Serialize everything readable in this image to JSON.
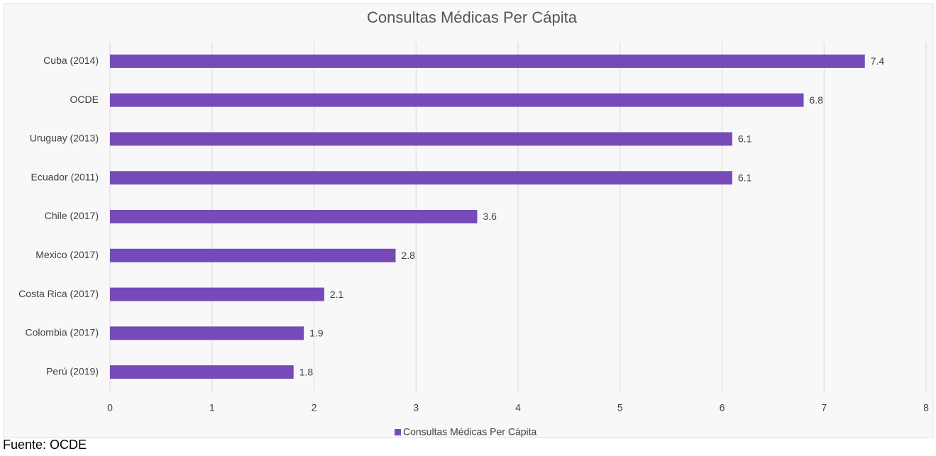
{
  "chart_data": {
    "type": "bar",
    "orientation": "horizontal",
    "title": "Consultas Médicas Per Cápita",
    "categories": [
      "Cuba (2014)",
      "OCDE",
      "Uruguay (2013)",
      "Ecuador (2011)",
      "Chile (2017)",
      "Mexico (2017)",
      "Costa Rica (2017)",
      "Colombia (2017)",
      "Perú (2019)"
    ],
    "series": [
      {
        "name": "Consultas Médicas Per Cápita",
        "color": "#764bb9",
        "values": [
          7.4,
          6.8,
          6.1,
          6.1,
          3.6,
          2.8,
          2.1,
          1.9,
          1.8
        ]
      }
    ],
    "xlim": [
      0,
      8
    ],
    "xticks": [
      0,
      1,
      2,
      3,
      4,
      5,
      6,
      7,
      8
    ],
    "grid": true,
    "legend": "bottom",
    "source": "Fuente: OCDE"
  }
}
